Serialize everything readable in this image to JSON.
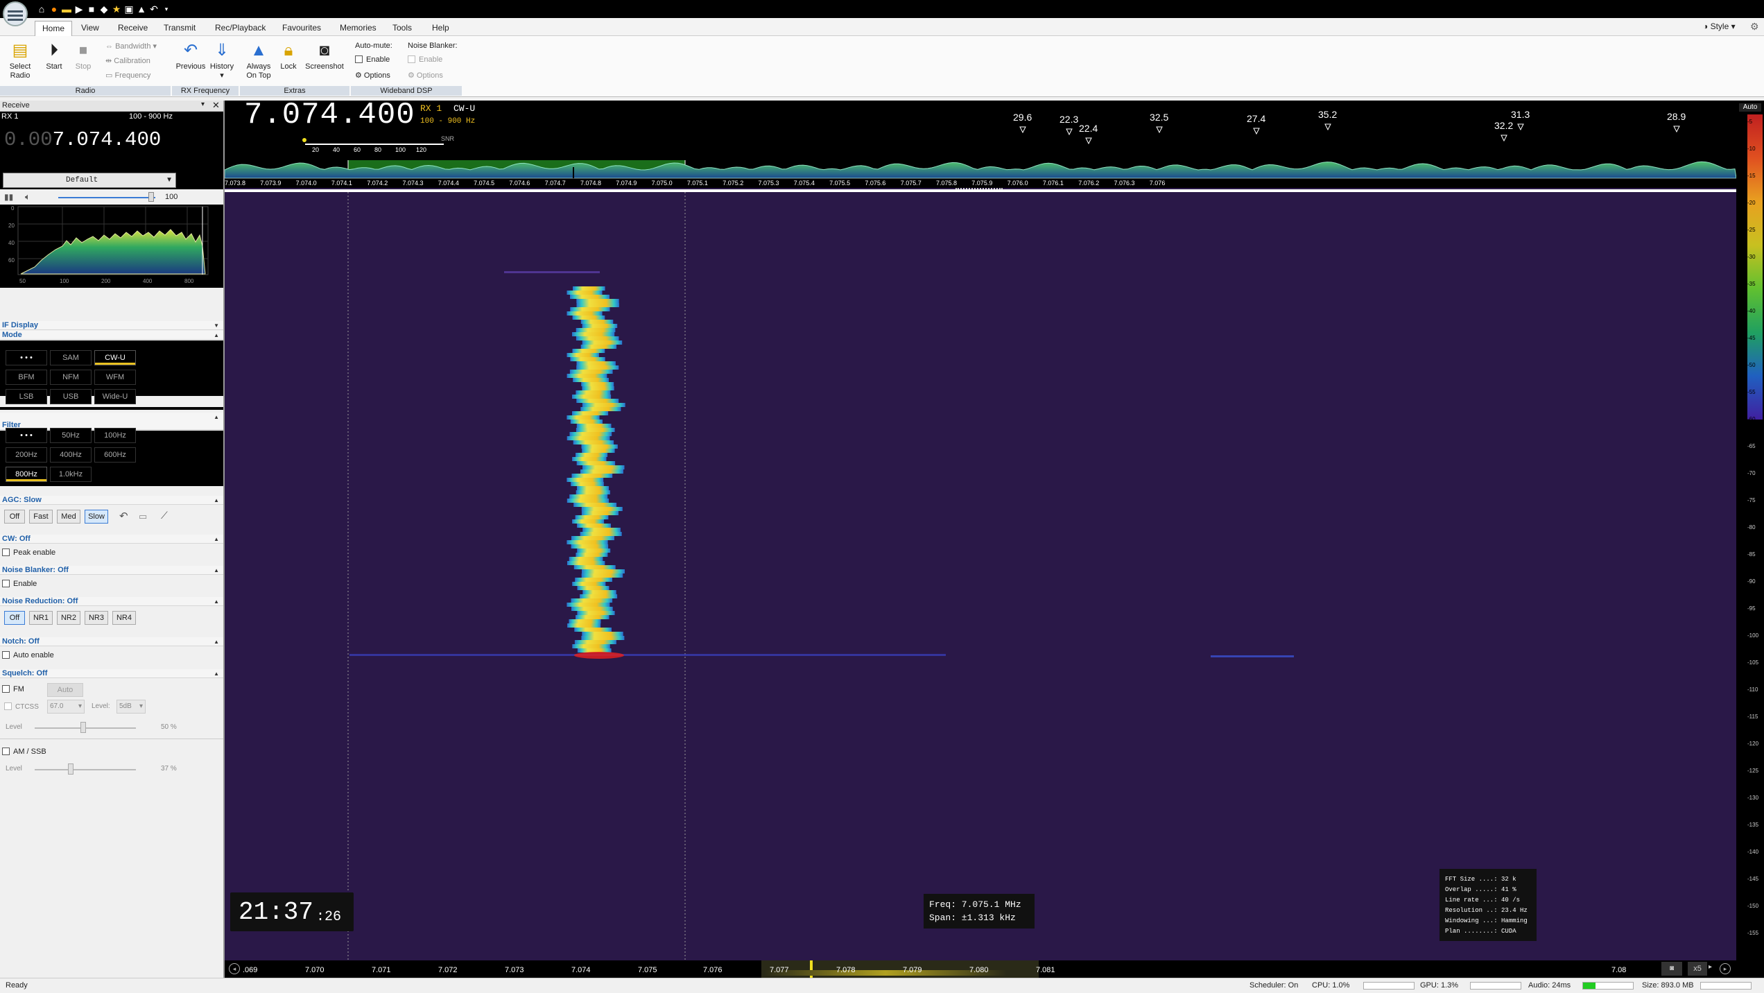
{
  "menu": {
    "tabs": [
      "Home",
      "View",
      "Receive",
      "Transmit",
      "Rec/Playback",
      "Favourites",
      "Memories",
      "Tools",
      "Help"
    ],
    "style_label": "Style"
  },
  "ribbon": {
    "select_radio": "Select\nRadio",
    "start": "Start",
    "stop": "Stop",
    "bandwidth": "Bandwidth",
    "calibration": "Calibration",
    "frequency": "Frequency",
    "previous": "Previous",
    "history": "History",
    "always_on_top": "Always\nOn Top",
    "lock": "Lock",
    "screenshot": "Screenshot",
    "auto_mute": "Auto-mute:",
    "enable": "Enable",
    "options": "Options",
    "noise_blanker": "Noise Blanker:",
    "nb_enable": "Enable",
    "nb_options": "Options",
    "groups": [
      "Radio",
      "RX Frequency",
      "Extras",
      "Wideband DSP"
    ]
  },
  "receive": {
    "title": "Receive",
    "rx": "RX 1",
    "range": "100 - 900 Hz",
    "freq_dim": "0.00",
    "freq": "7.074.400",
    "profile": "Default",
    "volume": "100"
  },
  "sections": {
    "if_display": "IF Display",
    "mode": "Mode",
    "filter": "Filter",
    "agc": "AGC: Slow",
    "cw": "CW: Off",
    "peak_enable": "Peak enable",
    "nb": "Noise Blanker: Off",
    "nb_enable": "Enable",
    "nr": "Noise Reduction: Off",
    "notch": "Notch: Off",
    "auto_enable": "Auto enable",
    "squelch": "Squelch: Off"
  },
  "modes": [
    "• • •",
    "SAM",
    "CW-U",
    "BFM",
    "NFM",
    "WFM",
    "LSB",
    "USB",
    "Wide-U"
  ],
  "filters": [
    "• • •",
    "50Hz",
    "100Hz",
    "200Hz",
    "400Hz",
    "600Hz",
    "800Hz",
    "1.0kHz"
  ],
  "agc_buttons": [
    "Off",
    "Fast",
    "Med",
    "Slow"
  ],
  "nr_buttons": [
    "Off",
    "NR1",
    "NR2",
    "NR3",
    "NR4"
  ],
  "squelch": {
    "fm": "FM",
    "auto": "Auto",
    "ctcss": "CTCSS",
    "ctcss_val": "67.0",
    "level_lbl": "Level:",
    "level_val": "5dB",
    "level": "Level",
    "fm_pct": "50 %",
    "amssb": "AM / SSB",
    "level2": "Level",
    "amssb_pct": "37 %"
  },
  "if_spectrum": {
    "yticks": [
      "0",
      "20",
      "40",
      "60"
    ],
    "xticks": [
      "50",
      "100",
      "200",
      "400",
      "800"
    ]
  },
  "main": {
    "freq": "7.074.400",
    "rx": "RX 1",
    "mode": "CW-U",
    "range": "100 - 900 Hz",
    "snr": "SNR",
    "snr_ticks": [
      "20",
      "40",
      "60",
      "80",
      "100",
      "120"
    ],
    "peaks": [
      "29.6",
      "22.3",
      "22.4",
      "32.5",
      "27.4",
      "35.2",
      "32.2",
      "31.3",
      "28.9"
    ],
    "freq_ticks": [
      "7.073.8",
      "7.073.9",
      "7.074.0",
      "7.074.1",
      "7.074.2",
      "7.074.3",
      "7.074.4",
      "7.074.5",
      "7.074.6",
      "7.074.7",
      "7.074.8",
      "7.074.9",
      "7.075.0",
      "7.075.1",
      "7.075.2",
      "7.075.3",
      "7.075.4",
      "7.075.5",
      "7.075.6",
      "7.075.7",
      "7.075.8",
      "7.075.9",
      "7.076.0",
      "7.076.1",
      "7.076.2",
      "7.076.3",
      "7.076"
    ],
    "clock_hm": "21:37",
    "clock_s": ":26",
    "freq_info": "Freq: 7.075.1 MHz",
    "span_info": "Span:  ±1.313 kHz",
    "fft_info": [
      "FFT Size ....: 32 k",
      "Overlap .....: 41 %",
      "Line rate ...: 40 /s",
      "Resolution ..: 23.4 Hz",
      "Windowing ...: Hamming",
      "Plan ........: CUDA"
    ],
    "bottom_ticks": [
      ".069",
      "7.070",
      "7.071",
      "7.072",
      "7.073",
      "7.074",
      "7.075",
      "7.076",
      "7.077",
      "7.078",
      "7.079",
      "7.080",
      "7.081",
      "7.08"
    ],
    "zoom": "x5"
  },
  "right_scale": {
    "auto": "Auto",
    "ticks": [
      "-5",
      "-10",
      "-15",
      "-20",
      "-25",
      "-30",
      "-35",
      "-40",
      "-45",
      "-50",
      "-55",
      "-60",
      "-65",
      "-70",
      "-75",
      "-80",
      "-85",
      "-90",
      "-95",
      "-100",
      "-105",
      "-110",
      "-115",
      "-120",
      "-125",
      "-130",
      "-135",
      "-140",
      "-145",
      "-150",
      "-155"
    ]
  },
  "status": {
    "ready": "Ready",
    "scheduler": "Scheduler: On",
    "cpu": "CPU: 1.0%",
    "gpu": "GPU: 1.3%",
    "audio": "Audio: 24ms",
    "size": "Size: 893.0 MB"
  }
}
